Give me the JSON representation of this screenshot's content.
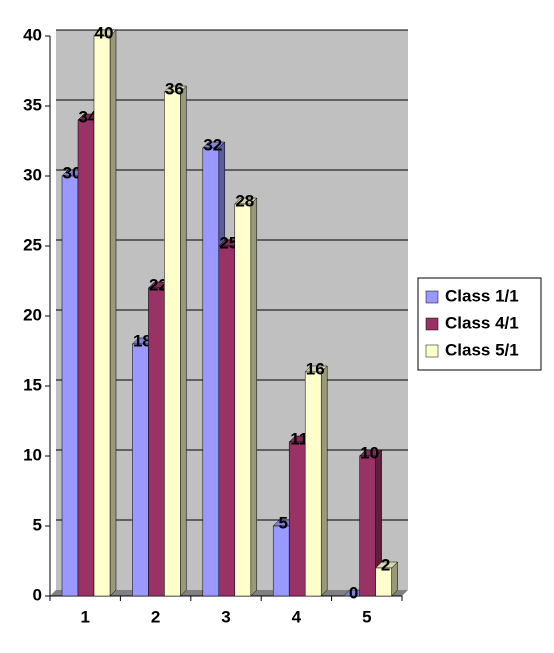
{
  "chart_data": {
    "type": "bar",
    "categories": [
      "1",
      "2",
      "3",
      "4",
      "5"
    ],
    "series": [
      {
        "name": "Class 1/1",
        "color": "#9999ff",
        "values": [
          30,
          18,
          32,
          5,
          0
        ]
      },
      {
        "name": "Class 4/1",
        "color": "#993366",
        "values": [
          34,
          22,
          25,
          11,
          10
        ]
      },
      {
        "name": "Class 5/1",
        "color": "#ffffcc",
        "values": [
          40,
          36,
          28,
          16,
          2
        ]
      }
    ],
    "ylim": [
      0,
      40
    ],
    "yticks": [
      0,
      5,
      10,
      15,
      20,
      25,
      30,
      35,
      40
    ],
    "grid": true,
    "legend": "right"
  }
}
